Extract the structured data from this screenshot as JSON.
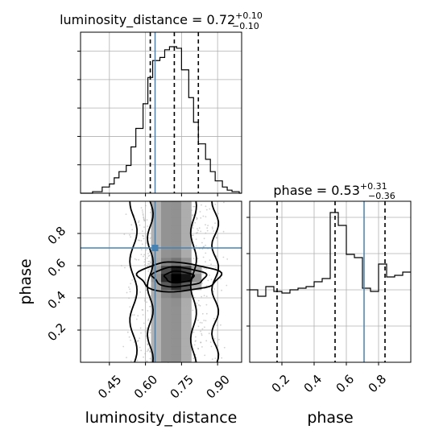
{
  "chart_data": [
    {
      "type": "histogram",
      "panel": "luminosity_distance-marginal",
      "title_param": "luminosity_distance",
      "title_value": "0.72",
      "title_plus": "+0.10",
      "title_minus": "−0.10",
      "xlim": [
        0.33,
        1.0
      ],
      "bins": [
        0.33,
        0.35,
        0.38,
        0.4,
        0.42,
        0.45,
        0.47,
        0.49,
        0.52,
        0.54,
        0.56,
        0.59,
        0.61,
        0.63,
        0.66,
        0.68,
        0.7,
        0.73,
        0.75,
        0.78,
        0.8,
        0.82,
        0.85,
        0.87,
        0.89,
        0.92,
        0.94,
        0.96,
        0.99,
        1.0
      ],
      "counts": [
        0,
        0,
        1,
        1,
        4,
        6,
        10,
        14,
        18,
        30,
        42,
        58,
        75,
        86,
        88,
        93,
        95,
        94,
        80,
        62,
        46,
        32,
        22,
        14,
        8,
        4,
        2,
        1,
        0
      ],
      "quantiles": [
        0.62,
        0.72,
        0.82
      ],
      "truth": 0.64
    },
    {
      "type": "heatmap",
      "panel": "2d-luminosity_distance-vs-phase",
      "xlabel": "luminosity_distance",
      "ylabel": "phase",
      "xlim": [
        0.33,
        1.0
      ],
      "ylim": [
        0.0,
        1.0
      ],
      "xticks": [
        0.45,
        0.6,
        0.75,
        0.9
      ],
      "xtick_labels": [
        "0.45",
        "0.60",
        "0.75",
        "0.90"
      ],
      "yticks": [
        0.2,
        0.4,
        0.6,
        0.8
      ],
      "ytick_labels": [
        "0.2",
        "0.4",
        "0.6",
        "0.8"
      ],
      "truth": [
        0.64,
        0.71
      ]
    },
    {
      "type": "histogram",
      "panel": "phase-marginal",
      "title_param": "phase",
      "title_value": "0.53",
      "title_plus": "+0.31",
      "title_minus": "−0.36",
      "xlabel": "phase",
      "xlim": [
        0.0,
        1.0
      ],
      "xticks": [
        0.2,
        0.4,
        0.6,
        0.8
      ],
      "xtick_labels": [
        "0.2",
        "0.4",
        "0.6",
        "0.8"
      ],
      "bins": [
        0.0,
        0.05,
        0.1,
        0.15,
        0.2,
        0.25,
        0.3,
        0.35,
        0.4,
        0.45,
        0.5,
        0.55,
        0.6,
        0.65,
        0.7,
        0.75,
        0.8,
        0.85,
        0.9,
        0.95,
        1.0
      ],
      "counts": [
        45,
        41,
        47,
        44,
        43,
        45,
        46,
        47,
        50,
        52,
        93,
        85,
        67,
        65,
        46,
        44,
        61,
        53,
        54,
        56
      ],
      "quantiles": [
        0.17,
        0.53,
        0.84
      ],
      "truth": 0.71
    }
  ]
}
